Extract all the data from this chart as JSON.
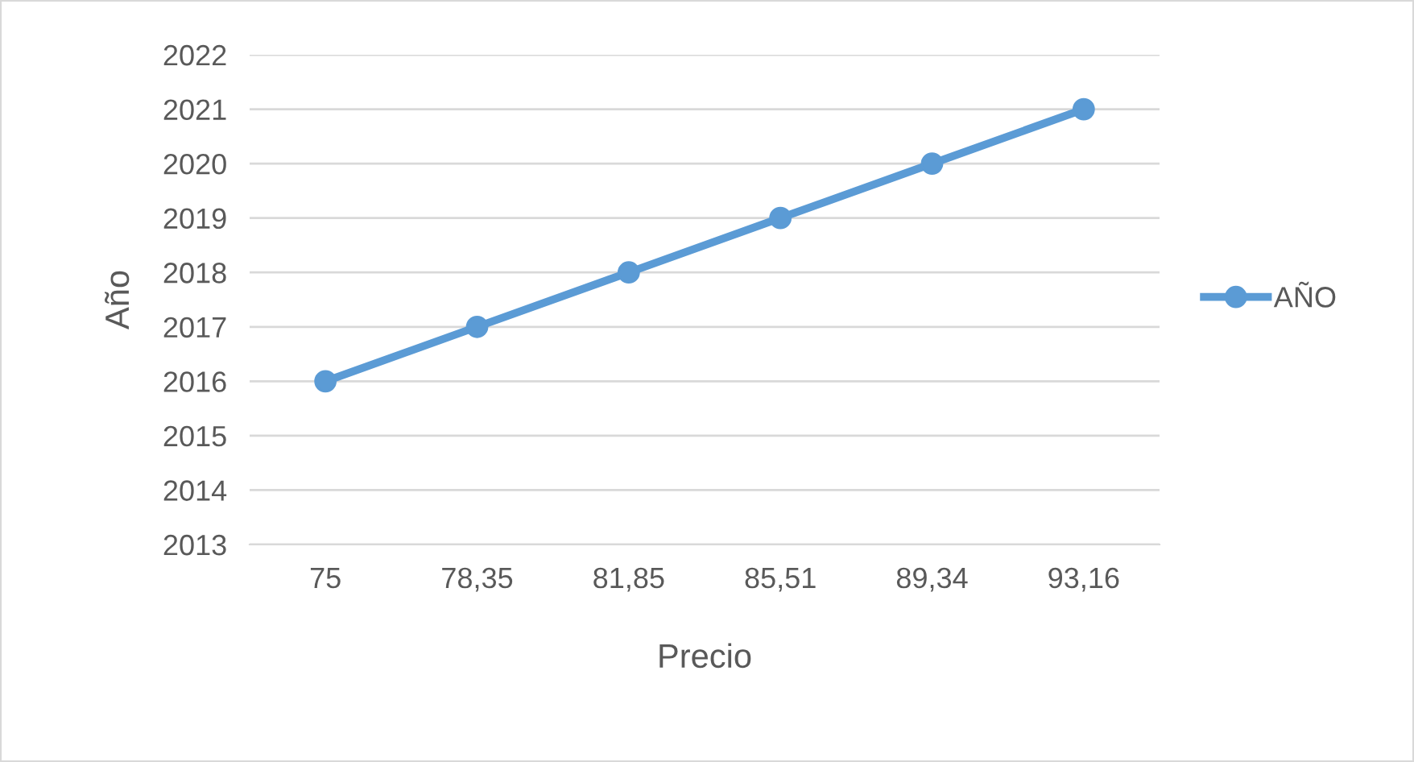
{
  "chart_data": {
    "type": "line",
    "xlabel": "Precio",
    "ylabel": "Año",
    "categories": [
      "75",
      "78,35",
      "81,85",
      "85,51",
      "89,34",
      "93,16"
    ],
    "series": [
      {
        "name": "AÑO",
        "color": "#5b9bd5",
        "values": [
          2016,
          2017,
          2018,
          2019,
          2020,
          2021
        ]
      }
    ],
    "ylim": [
      2013,
      2022
    ],
    "yticks": [
      2013,
      2014,
      2015,
      2016,
      2017,
      2018,
      2019,
      2020,
      2021,
      2022
    ],
    "grid": "y",
    "legend": "right",
    "marker": "circle",
    "line_style": "solid"
  }
}
